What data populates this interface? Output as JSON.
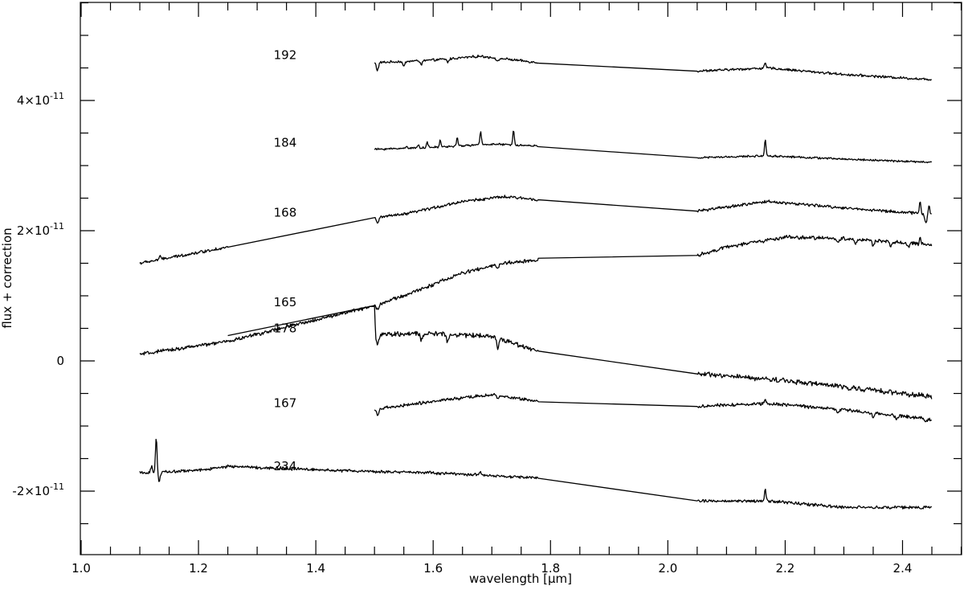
{
  "chart_data": {
    "type": "line",
    "title": "",
    "xlabel": "wavelength [",
    "xlabel_unit": "μm",
    "xlabel_close": "]",
    "ylabel": "flux + correction",
    "xlim": [
      1.0,
      2.45
    ],
    "ylim": [
      -3e-11,
      5.5e-11
    ],
    "x_major_ticks": [
      {
        "value": 1.0,
        "label": "1.0"
      },
      {
        "value": 1.2,
        "label": "1.2"
      },
      {
        "value": 1.4,
        "label": "1.4"
      },
      {
        "value": 1.6,
        "label": "1.6"
      },
      {
        "value": 1.8,
        "label": "1.8"
      },
      {
        "value": 2.0,
        "label": "2.0"
      },
      {
        "value": 2.2,
        "label": "2.2"
      },
      {
        "value": 2.4,
        "label": "2.4"
      }
    ],
    "y_major_ticks": [
      {
        "value": 4e-11,
        "mantissa": "4",
        "exponent": "-11"
      },
      {
        "value": 2e-11,
        "mantissa": "2",
        "exponent": "-11"
      },
      {
        "value": 0,
        "mantissa": "0",
        "exponent": ""
      },
      {
        "value": -2e-11,
        "mantissa": "-2",
        "exponent": "-11"
      }
    ],
    "grid": false,
    "legend": "none",
    "series": [
      {
        "name": "192",
        "label_at": [
          1.35,
          4.7e-11
        ],
        "anchors": [
          [
            1.5,
            4.58e-11
          ],
          [
            1.6,
            4.62e-11
          ],
          [
            1.68,
            4.68e-11
          ],
          [
            1.78,
            4.58e-11
          ],
          [
            2.05,
            4.45e-11
          ],
          [
            2.17,
            4.5e-11
          ],
          [
            2.3,
            4.4e-11
          ],
          [
            2.45,
            4.32e-11
          ]
        ],
        "gaps": [
          [
            1.78,
            2.05
          ]
        ],
        "dips": [
          [
            1.505,
            1.2e-12
          ],
          [
            1.55,
            8e-13
          ],
          [
            1.58,
            6e-13
          ],
          [
            1.625,
            5e-13
          ],
          [
            1.71,
            6e-13
          ]
        ],
        "peaks": [
          [
            2.166,
            7e-13
          ]
        ],
        "noise": 1.5e-13
      },
      {
        "name": "184",
        "label_at": [
          1.35,
          3.35e-11
        ],
        "anchors": [
          [
            1.5,
            3.25e-11
          ],
          [
            1.6,
            3.28e-11
          ],
          [
            1.7,
            3.33e-11
          ],
          [
            1.78,
            3.3e-11
          ],
          [
            2.05,
            3.12e-11
          ],
          [
            2.17,
            3.15e-11
          ],
          [
            2.3,
            3.1e-11
          ],
          [
            2.45,
            3.05e-11
          ]
        ],
        "gaps": [
          [
            1.78,
            2.05
          ]
        ],
        "dips": [],
        "peaks": [
          [
            1.555,
            4e-13
          ],
          [
            1.575,
            5e-13
          ],
          [
            1.59,
            8e-13
          ],
          [
            1.612,
            1e-12
          ],
          [
            1.641,
            1.2e-12
          ],
          [
            1.681,
            2e-12
          ],
          [
            1.737,
            2.4e-12
          ],
          [
            2.166,
            2.5e-12
          ]
        ],
        "noise": 1.2e-13
      },
      {
        "name": "168",
        "label_at": [
          1.35,
          2.28e-11
        ],
        "anchors": [
          [
            1.1,
            1.5e-11
          ],
          [
            1.25,
            1.75e-11
          ],
          [
            1.5,
            2.2e-11
          ],
          [
            1.55,
            2.25e-11
          ],
          [
            1.65,
            2.45e-11
          ],
          [
            1.72,
            2.52e-11
          ],
          [
            1.78,
            2.48e-11
          ],
          [
            2.05,
            2.3e-11
          ],
          [
            2.17,
            2.45e-11
          ],
          [
            2.3,
            2.35e-11
          ],
          [
            2.45,
            2.25e-11
          ]
        ],
        "gaps": [
          [
            1.25,
            1.5
          ],
          [
            1.78,
            2.05
          ]
        ],
        "dips": [
          [
            1.505,
            1e-12
          ],
          [
            2.44,
            1.5e-12
          ]
        ],
        "peaks": [
          [
            1.134,
            6e-13
          ],
          [
            2.43,
            2e-12
          ],
          [
            2.445,
            1.5e-12
          ]
        ],
        "noise": 1.8e-13
      },
      {
        "name": "165",
        "label_at": [
          1.35,
          9e-12
        ],
        "anchors": [
          [
            1.1,
            1e-12
          ],
          [
            1.25,
            3e-12
          ],
          [
            1.5,
            8.5e-12
          ],
          [
            1.55,
            1e-11
          ],
          [
            1.65,
            1.35e-11
          ],
          [
            1.72,
            1.5e-11
          ],
          [
            1.78,
            1.55e-11
          ],
          [
            2.05,
            1.62e-11
          ],
          [
            2.1,
            1.75e-11
          ],
          [
            2.2,
            1.9e-11
          ],
          [
            2.3,
            1.88e-11
          ],
          [
            2.45,
            1.78e-11
          ]
        ],
        "gaps": [
          [
            1.78,
            2.05
          ]
        ],
        "dips": [
          [
            1.505,
            8e-13
          ],
          [
            1.71,
            6e-13
          ],
          [
            2.29,
            6e-13
          ],
          [
            2.32,
            7e-13
          ],
          [
            2.35,
            7e-13
          ],
          [
            2.38,
            7e-13
          ],
          [
            2.41,
            6e-13
          ]
        ],
        "peaks": [
          [
            2.43,
            1e-12
          ]
        ],
        "noise": 2.2e-13
      },
      {
        "name": "178",
        "label_at": [
          1.35,
          5e-12
        ],
        "anchors": [
          [
            1.25,
            4e-12
          ],
          [
            1.5,
            8.5e-12
          ],
          [
            1.502,
            4e-12
          ],
          [
            1.6,
            4.2e-12
          ],
          [
            1.7,
            3.8e-12
          ],
          [
            1.78,
            1.5e-12
          ],
          [
            2.05,
            -2e-12
          ],
          [
            2.2,
            -3e-12
          ],
          [
            2.45,
            -5.5e-12
          ]
        ],
        "gaps": [
          [
            1.25,
            1.5
          ],
          [
            1.78,
            2.05
          ]
        ],
        "dips": [
          [
            1.505,
            1.6e-12
          ],
          [
            1.58,
            1e-12
          ],
          [
            1.625,
            1.2e-12
          ],
          [
            1.71,
            1.6e-12
          ]
        ],
        "peaks": [],
        "noise": 3e-13
      },
      {
        "name": "167",
        "label_at": [
          1.35,
          -6.5e-12
        ],
        "anchors": [
          [
            1.5,
            -7.5e-12
          ],
          [
            1.6,
            -6.2e-12
          ],
          [
            1.7,
            -5.2e-12
          ],
          [
            1.78,
            -6.2e-12
          ],
          [
            2.05,
            -7e-12
          ],
          [
            2.17,
            -6.5e-12
          ],
          [
            2.3,
            -7.5e-12
          ],
          [
            2.45,
            -9e-12
          ]
        ],
        "gaps": [
          [
            1.78,
            2.05
          ]
        ],
        "dips": [
          [
            1.505,
            8e-13
          ],
          [
            1.71,
            6e-13
          ],
          [
            2.29,
            6e-13
          ],
          [
            2.35,
            6e-13
          ],
          [
            2.39,
            6e-13
          ],
          [
            2.44,
            5e-13
          ]
        ],
        "peaks": [
          [
            2.166,
            6e-13
          ]
        ],
        "noise": 2e-13
      },
      {
        "name": "234",
        "label_at": [
          1.35,
          -1.62e-11
        ],
        "anchors": [
          [
            1.1,
            -1.72e-11
          ],
          [
            1.2,
            -1.68e-11
          ],
          [
            1.25,
            -1.62e-11
          ],
          [
            1.5,
            -1.7e-11
          ],
          [
            1.6,
            -1.72e-11
          ],
          [
            1.78,
            -1.8e-11
          ],
          [
            2.05,
            -2.15e-11
          ],
          [
            2.17,
            -2.15e-11
          ],
          [
            2.3,
            -2.25e-11
          ],
          [
            2.45,
            -2.25e-11
          ]
        ],
        "gaps": [
          [
            1.78,
            2.05
          ]
        ],
        "dips": [
          [
            1.133,
            1.4e-12
          ]
        ],
        "peaks": [
          [
            1.128,
            5.5e-12
          ],
          [
            1.12,
            1e-12
          ],
          [
            2.166,
            2e-12
          ],
          [
            1.68,
            5e-13
          ]
        ],
        "noise": 1.8e-13
      }
    ]
  }
}
